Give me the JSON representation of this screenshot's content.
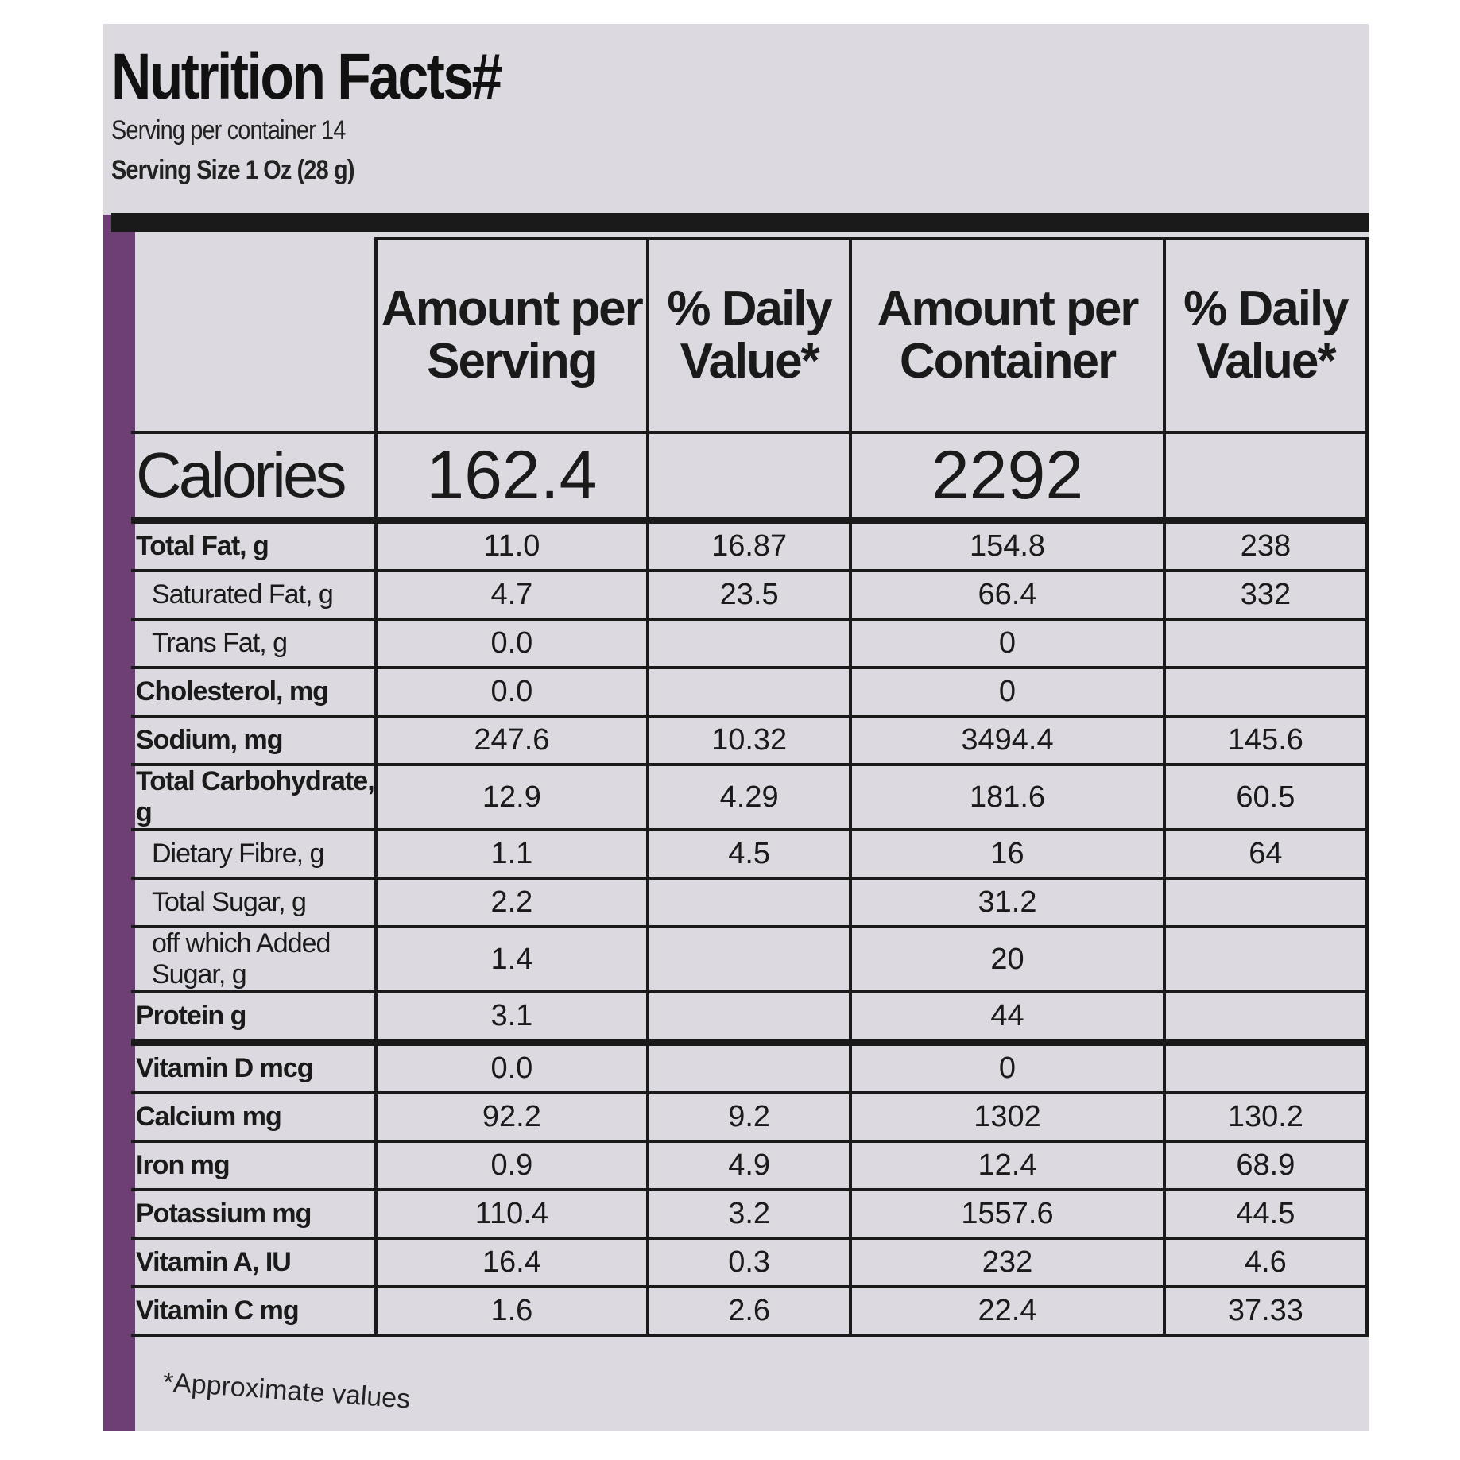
{
  "header": {
    "title": "Nutrition Facts#",
    "servings": "Serving per container 14",
    "serving_size": "Serving Size 1 Oz (28 g)"
  },
  "table": {
    "columns": [
      "Amount per Serving",
      "% Daily Value*",
      "Amount per Container",
      "% Daily Value*"
    ],
    "calories": [
      "Calories",
      "162.4",
      null,
      "2292",
      null
    ],
    "rows": [
      [
        "Total Fat, g",
        "11.0",
        "16.87",
        "154.8",
        "238"
      ],
      [
        "Saturated Fat, g",
        "4.7",
        "23.5",
        "66.4",
        "332"
      ],
      [
        "Trans Fat, g",
        "0.0",
        null,
        "0",
        null
      ],
      [
        "Cholesterol, mg",
        "0.0",
        null,
        "0",
        null
      ],
      [
        "Sodium, mg",
        "247.6",
        "10.32",
        "3494.4",
        "145.6"
      ],
      [
        "Total Carbohydrate, g",
        "12.9",
        "4.29",
        "181.6",
        "60.5"
      ],
      [
        "Dietary Fibre, g",
        "1.1",
        "4.5",
        "16",
        "64"
      ],
      [
        "Total Sugar, g",
        "2.2",
        null,
        "31.2",
        null
      ],
      [
        "off which Added Sugar, g",
        "1.4",
        null,
        "20",
        null
      ],
      [
        "Protein g",
        "3.1",
        null,
        "44",
        null
      ],
      [
        "Vitamin D mcg",
        "0.0",
        null,
        "0",
        null
      ],
      [
        "Calcium mg",
        "92.2",
        "9.2",
        "1302",
        "130.2"
      ],
      [
        "Iron mg",
        "0.9",
        "4.9",
        "12.4",
        "68.9"
      ],
      [
        "Potassium mg",
        "110.4",
        "3.2",
        "1557.6",
        "44.5"
      ],
      [
        "Vitamin A, IU",
        "16.4",
        "0.3",
        "232",
        "4.6"
      ],
      [
        "Vitamin C mg",
        "1.6",
        "2.6",
        "22.4",
        "37.33"
      ]
    ]
  },
  "footnote": "*Approximate values"
}
